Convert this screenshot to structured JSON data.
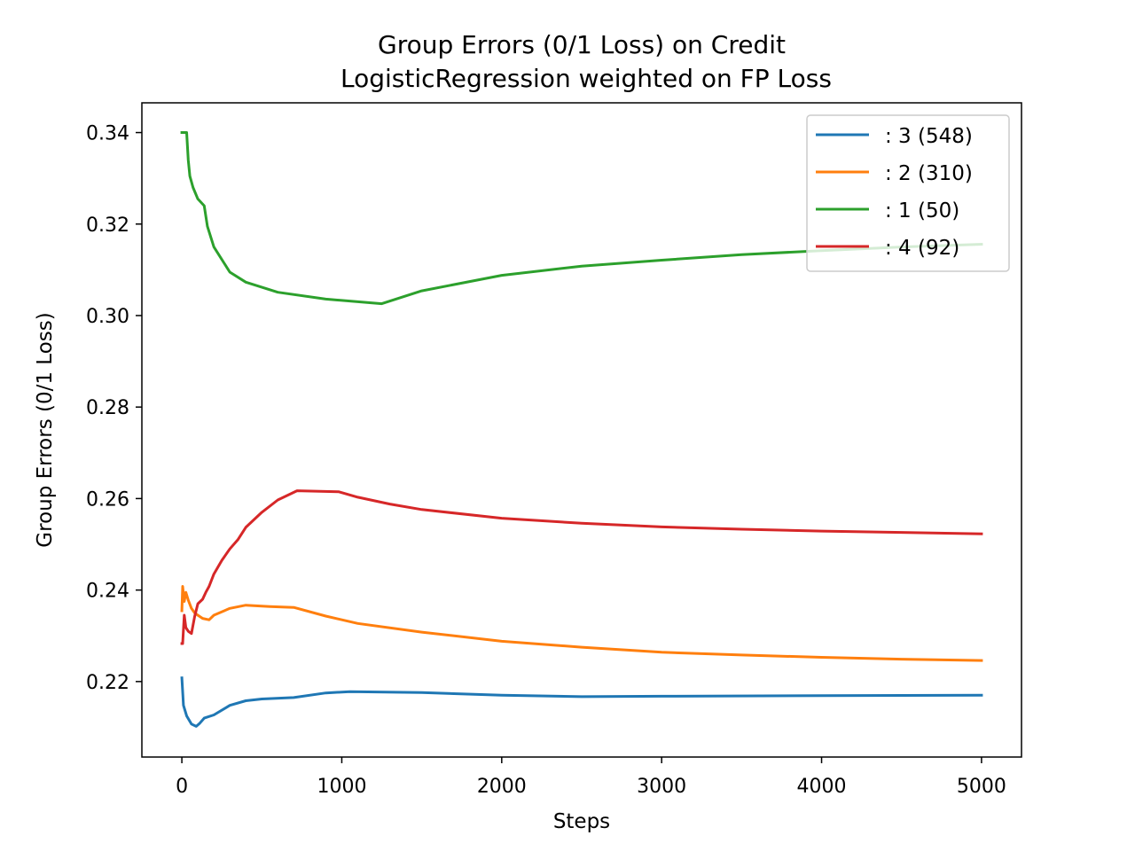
{
  "chart_data": {
    "type": "line",
    "title_line1": "Group Errors (0/1 Loss) on Credit",
    "title_line2": "LogisticRegression weighted on FP Loss",
    "xlabel": "Steps",
    "ylabel": "Group Errors (0/1 Loss)",
    "xlim": [
      -250,
      5250
    ],
    "ylim": [
      0.2035,
      0.3465
    ],
    "xticks": [
      0,
      1000,
      2000,
      3000,
      4000,
      5000
    ],
    "xtick_labels": [
      "0",
      "1000",
      "2000",
      "3000",
      "4000",
      "5000"
    ],
    "yticks": [
      0.22,
      0.24,
      0.26,
      0.28,
      0.3,
      0.32,
      0.34
    ],
    "ytick_labels": [
      "0.22",
      "0.24",
      "0.26",
      "0.28",
      "0.30",
      "0.32",
      "0.34"
    ],
    "grid": false,
    "legend_position": "top-right",
    "series": [
      {
        "name": ": 3  (548)",
        "color": "#1f77b4",
        "x": [
          0,
          10,
          30,
          60,
          90,
          110,
          140,
          200,
          300,
          400,
          500,
          700,
          900,
          1050,
          1500,
          2000,
          2500,
          3000,
          4000,
          5000
        ],
        "y": [
          0.2208,
          0.2148,
          0.2125,
          0.2107,
          0.2102,
          0.2108,
          0.212,
          0.2127,
          0.2148,
          0.2158,
          0.2162,
          0.2165,
          0.2175,
          0.2178,
          0.2176,
          0.217,
          0.2167,
          0.2168,
          0.2169,
          0.217
        ]
      },
      {
        "name": ": 2  (310)",
        "color": "#ff7f0e",
        "x": [
          0,
          5,
          15,
          25,
          40,
          60,
          80,
          100,
          130,
          170,
          200,
          300,
          400,
          550,
          700,
          900,
          1100,
          1500,
          2000,
          2500,
          3000,
          3500,
          4000,
          4500,
          5000
        ],
        "y": [
          0.2355,
          0.2408,
          0.2375,
          0.2395,
          0.2378,
          0.236,
          0.235,
          0.2345,
          0.2338,
          0.2335,
          0.2345,
          0.236,
          0.2367,
          0.2364,
          0.2362,
          0.2343,
          0.2327,
          0.2308,
          0.2288,
          0.2275,
          0.2264,
          0.2258,
          0.2253,
          0.2249,
          0.2246
        ]
      },
      {
        "name": ": 1  (50)",
        "color": "#2ca02c",
        "x": [
          0,
          30,
          40,
          50,
          70,
          100,
          140,
          160,
          200,
          300,
          400,
          600,
          900,
          1250,
          1500,
          2000,
          2500,
          3000,
          3500,
          4000,
          4500,
          5000
        ],
        "y": [
          0.34,
          0.34,
          0.334,
          0.3305,
          0.328,
          0.3255,
          0.324,
          0.3195,
          0.315,
          0.3095,
          0.3073,
          0.3051,
          0.3036,
          0.3026,
          0.3054,
          0.3088,
          0.3108,
          0.3121,
          0.3133,
          0.3142,
          0.315,
          0.3156
        ]
      },
      {
        "name": ": 4  (92)",
        "color": "#d62728",
        "x": [
          0,
          5,
          15,
          25,
          40,
          60,
          80,
          100,
          130,
          150,
          170,
          200,
          250,
          300,
          350,
          400,
          500,
          600,
          720,
          980,
          1100,
          1300,
          1500,
          2000,
          2500,
          3000,
          3500,
          4000,
          4500,
          5000
        ],
        "y": [
          0.2283,
          0.2283,
          0.2345,
          0.2318,
          0.231,
          0.2305,
          0.2342,
          0.237,
          0.238,
          0.2395,
          0.2408,
          0.2435,
          0.2465,
          0.249,
          0.251,
          0.2537,
          0.257,
          0.2597,
          0.2617,
          0.2615,
          0.2603,
          0.2588,
          0.2576,
          0.2557,
          0.2546,
          0.2538,
          0.2533,
          0.2529,
          0.2526,
          0.2523
        ]
      }
    ]
  }
}
